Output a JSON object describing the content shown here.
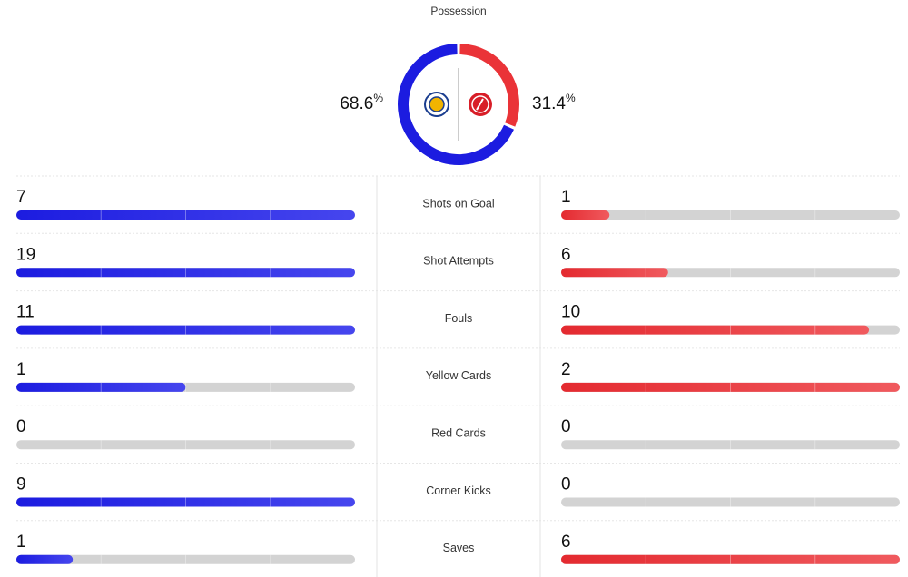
{
  "possession": {
    "title": "Possession",
    "home": 68.6,
    "away": 31.4,
    "unit": "%",
    "home_color": "#1c1ce0",
    "away_color": "#ea3338"
  },
  "stats": {
    "home_color": "#1c1ce0",
    "away_color": "#ea3338",
    "track_color": "#d3d3d3",
    "rows": [
      {
        "label": "Shots on Goal",
        "home": 7,
        "away": 1
      },
      {
        "label": "Shot Attempts",
        "home": 19,
        "away": 6
      },
      {
        "label": "Fouls",
        "home": 11,
        "away": 10
      },
      {
        "label": "Yellow Cards",
        "home": 1,
        "away": 2
      },
      {
        "label": "Red Cards",
        "home": 0,
        "away": 0
      },
      {
        "label": "Corner Kicks",
        "home": 9,
        "away": 0
      },
      {
        "label": "Saves",
        "home": 1,
        "away": 6
      }
    ]
  }
}
